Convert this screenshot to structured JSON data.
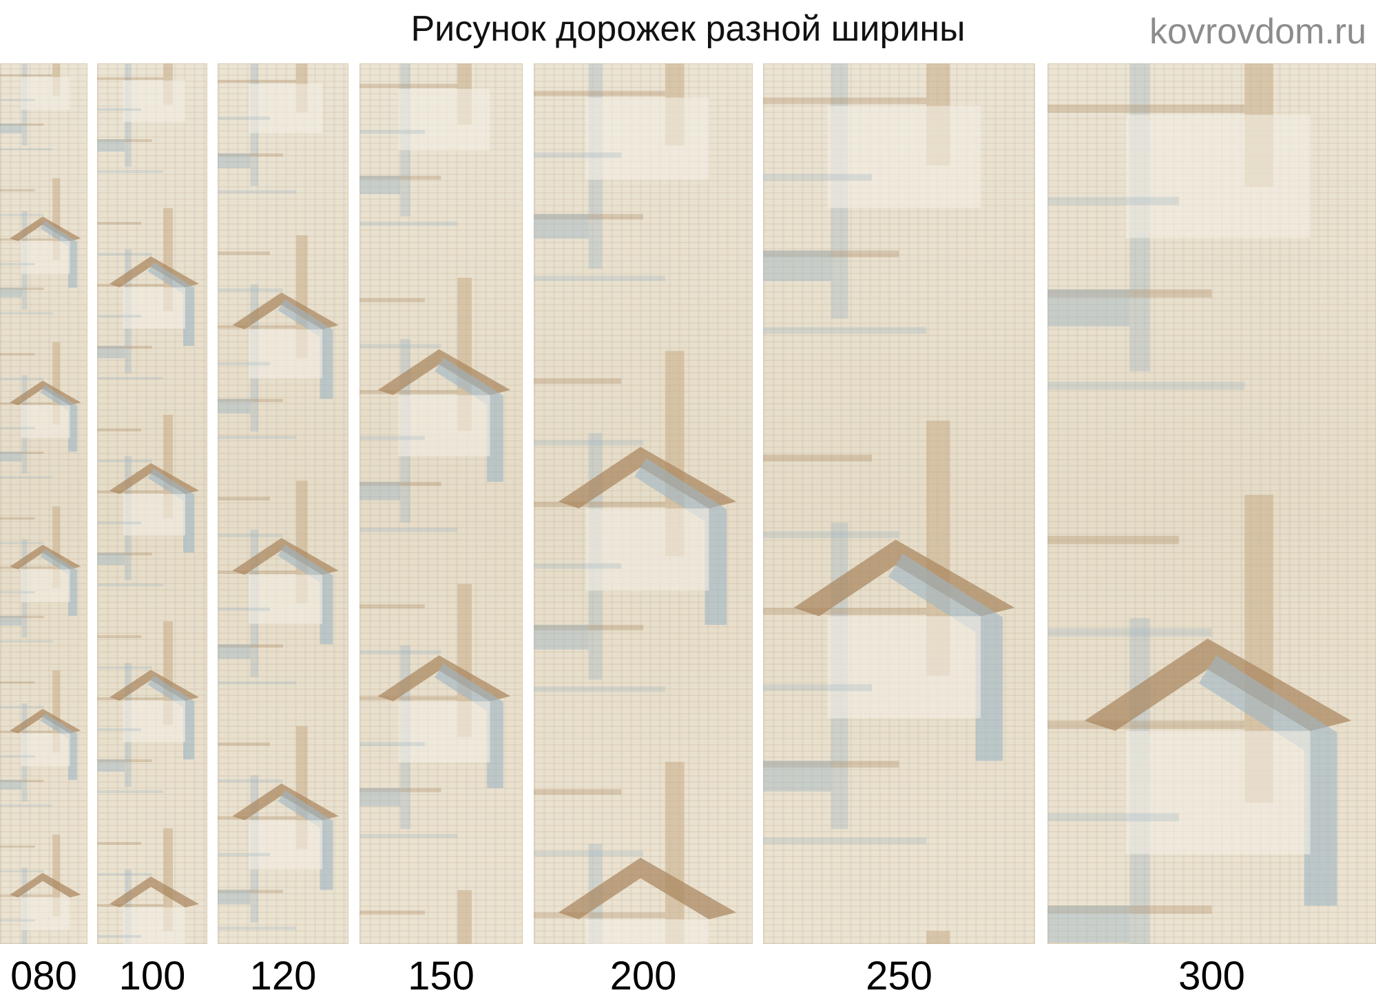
{
  "title": "Рисунок дорожек разной ширины",
  "runners": [
    {
      "label": "080"
    },
    {
      "label": "100"
    },
    {
      "label": "120"
    },
    {
      "label": "150"
    },
    {
      "label": "200"
    },
    {
      "label": "250"
    },
    {
      "label": "300"
    }
  ],
  "watermark": "kovrovdom.ru",
  "colors": {
    "cream": "#ece4d3",
    "brown": "#a8845c",
    "blue": "#9fb5c4",
    "beige": "#c9ad88"
  }
}
